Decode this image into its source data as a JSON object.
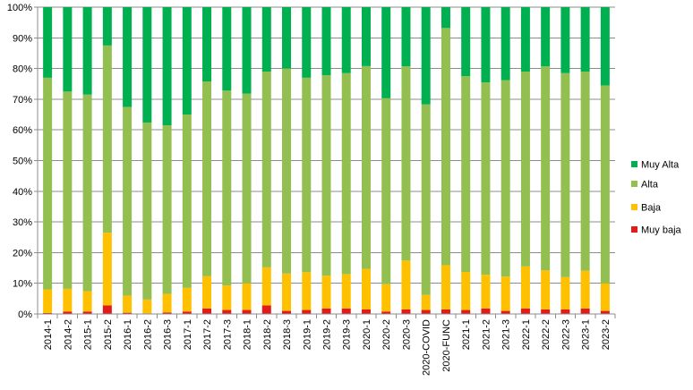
{
  "chart_data": {
    "type": "bar",
    "stacked": "percent",
    "ylim": [
      0,
      100
    ],
    "yticks": [
      "0%",
      "10%",
      "20%",
      "30%",
      "40%",
      "50%",
      "60%",
      "70%",
      "80%",
      "90%",
      "100%"
    ],
    "grid": true,
    "legend_position": "right",
    "categories": [
      "2014-1",
      "2014-2",
      "2015-1",
      "2015-2",
      "2016-1",
      "2016-2",
      "2016-3",
      "2017-1",
      "2017-2",
      "2017-3",
      "2018-1",
      "2018-2",
      "2018-3",
      "2019-1",
      "2019-2",
      "2019-3",
      "2020-1",
      "2020-2",
      "2020-3",
      "2020-COVID",
      "2020-FUNC",
      "2021-1",
      "2021-2",
      "2021-3",
      "2022-1",
      "2022-2",
      "2022-3",
      "2023-1",
      "2023-2"
    ],
    "series": [
      {
        "name": "Muy baja",
        "color": "#e31a1c",
        "values": [
          0.3,
          0.8,
          0.8,
          2.8,
          0.4,
          0.2,
          0.5,
          0.8,
          1.8,
          1.3,
          1.3,
          2.8,
          1.0,
          1.3,
          1.8,
          1.8,
          1.5,
          0.8,
          1.5,
          1.3,
          1.5,
          1.3,
          1.8,
          1.0,
          1.8,
          1.5,
          1.5,
          1.8,
          1.0
        ]
      },
      {
        "name": "Baja",
        "color": "#ffc000",
        "values": [
          7.7,
          7.4,
          6.6,
          23.7,
          5.6,
          4.5,
          6.0,
          7.7,
          10.5,
          8.0,
          8.7,
          12.4,
          12.2,
          12.3,
          10.7,
          11.2,
          13.2,
          8.9,
          15.9,
          4.9,
          14.4,
          12.4,
          11.0,
          11.2,
          13.7,
          12.7,
          10.5,
          12.3,
          9.0
        ]
      },
      {
        "name": "Alta",
        "color": "#92bf4f",
        "values": [
          69.0,
          64.3,
          64.1,
          61.0,
          61.5,
          57.7,
          55.0,
          56.5,
          63.5,
          63.5,
          61.8,
          63.8,
          66.8,
          63.4,
          65.3,
          65.5,
          66.1,
          60.6,
          63.3,
          62.1,
          77.3,
          63.8,
          62.7,
          64.0,
          63.5,
          66.5,
          66.5,
          64.9,
          64.5
        ]
      },
      {
        "name": "Muy Alta",
        "color": "#00b050",
        "values": [
          23.0,
          27.5,
          28.5,
          12.5,
          32.5,
          37.6,
          38.5,
          35.0,
          24.2,
          27.2,
          28.2,
          21.0,
          20.0,
          23.0,
          22.2,
          21.5,
          19.2,
          29.7,
          19.3,
          31.7,
          6.8,
          22.5,
          24.5,
          23.8,
          21.0,
          19.3,
          21.5,
          21.0,
          25.5
        ]
      }
    ]
  }
}
